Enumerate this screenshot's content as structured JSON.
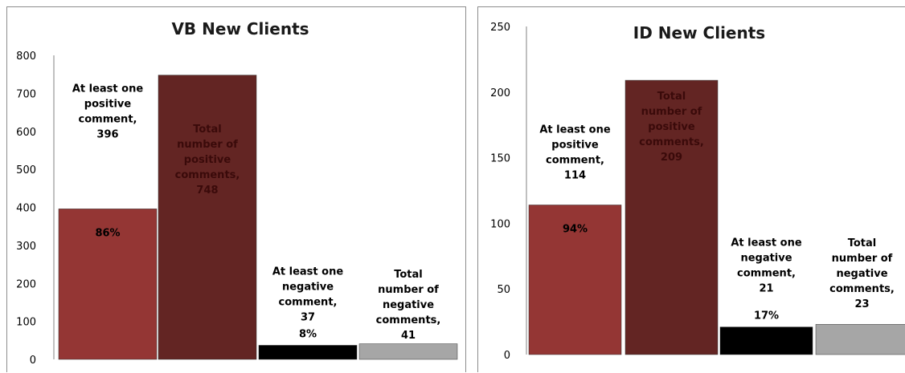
{
  "chart_data": [
    {
      "type": "bar",
      "title": "VB New Clients",
      "ylim": [
        0,
        800
      ],
      "yticks": [
        "0",
        "100",
        "200",
        "300",
        "400",
        "500",
        "600",
        "700",
        "800"
      ],
      "grid": false,
      "legend": "none",
      "categories": [
        "At least one positive comment",
        "Total number of positive comments",
        "At least one negative comment",
        "Total number of negative comments"
      ],
      "values": [
        396,
        748,
        37,
        41
      ],
      "data_labels": [
        [
          "At least one",
          "positive",
          "comment,",
          "396"
        ],
        [
          "Total",
          "number of",
          "positive",
          "comments,",
          "748"
        ],
        [
          "At least one",
          "negative",
          "comment,",
          "37"
        ],
        [
          "Total",
          "number of",
          "negative",
          "comments,",
          "41"
        ]
      ],
      "percent_labels": [
        "86%",
        "",
        "8%",
        ""
      ],
      "colors": [
        "#943634",
        "#632523",
        "#000000",
        "#a6a6a6"
      ],
      "label_colors": [
        "#000000",
        "#3a0a0a",
        "#000000",
        "#000000"
      ]
    },
    {
      "type": "bar",
      "title": "ID New Clients",
      "ylim": [
        0,
        250
      ],
      "yticks": [
        "0",
        "50",
        "100",
        "150",
        "200",
        "250"
      ],
      "grid": false,
      "legend": "none",
      "categories": [
        "At least one positive comment",
        "Total number of positive comments",
        "At least one negative comment",
        "Total number of negative comments"
      ],
      "values": [
        114,
        209,
        21,
        23
      ],
      "data_labels": [
        [
          "At least one",
          "positive",
          "comment,",
          "114"
        ],
        [
          "Total",
          "number of",
          "positive",
          "comments,",
          "209"
        ],
        [
          "At least one",
          "negative",
          "comment,",
          "21"
        ],
        [
          "Total",
          "number of",
          "negative",
          "comments,",
          "23"
        ]
      ],
      "percent_labels": [
        "94%",
        "",
        "17%",
        ""
      ],
      "colors": [
        "#943634",
        "#632523",
        "#000000",
        "#a6a6a6"
      ],
      "label_colors": [
        "#000000",
        "#3a0a0a",
        "#000000",
        "#000000"
      ]
    }
  ]
}
